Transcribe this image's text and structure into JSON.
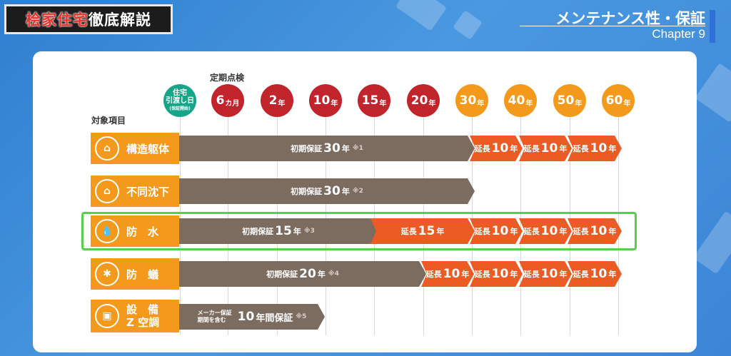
{
  "header": {
    "badge_part1": "桧家住宅",
    "badge_part2": "徹底解説",
    "section_title": "メンテナンス性・保証",
    "chapter": "Chapter 9"
  },
  "chart": {
    "inspection_label": "定期点検",
    "items_label": "対象項目",
    "start": {
      "line1": "住宅",
      "line2": "引渡し日",
      "line3": "(保証開始)"
    },
    "milestones": [
      {
        "num": "6",
        "unit": "カ月"
      },
      {
        "num": "2",
        "unit": "年"
      },
      {
        "num": "10",
        "unit": "年"
      },
      {
        "num": "15",
        "unit": "年"
      },
      {
        "num": "20",
        "unit": "年"
      },
      {
        "num": "30",
        "unit": "年"
      },
      {
        "num": "40",
        "unit": "年"
      },
      {
        "num": "50",
        "unit": "年"
      },
      {
        "num": "60",
        "unit": "年"
      }
    ],
    "rows": [
      {
        "label": "構造躯体",
        "bars": [
          {
            "prefix": "初期保証",
            "num": "30",
            "unit": "年",
            "note": "※1"
          },
          {
            "prefix": "延長",
            "num": "10",
            "unit": "年"
          },
          {
            "prefix": "延長",
            "num": "10",
            "unit": "年"
          },
          {
            "prefix": "延長",
            "num": "10",
            "unit": "年"
          }
        ]
      },
      {
        "label": "不同沈下",
        "bars": [
          {
            "prefix": "初期保証",
            "num": "30",
            "unit": "年",
            "note": "※2"
          }
        ]
      },
      {
        "label": "防　水",
        "bars": [
          {
            "prefix": "初期保証",
            "num": "15",
            "unit": "年",
            "note": "※3"
          },
          {
            "prefix": "延長",
            "num": "15",
            "unit": "年"
          },
          {
            "prefix": "延長",
            "num": "10",
            "unit": "年"
          },
          {
            "prefix": "延長",
            "num": "10",
            "unit": "年"
          },
          {
            "prefix": "延長",
            "num": "10",
            "unit": "年"
          }
        ]
      },
      {
        "label": "防　蟻",
        "bars": [
          {
            "prefix": "初期保証",
            "num": "20",
            "unit": "年",
            "note": "※4"
          },
          {
            "prefix": "延長",
            "num": "10",
            "unit": "年"
          },
          {
            "prefix": "延長",
            "num": "10",
            "unit": "年"
          },
          {
            "prefix": "延長",
            "num": "10",
            "unit": "年"
          },
          {
            "prefix": "延長",
            "num": "10",
            "unit": "年"
          }
        ]
      },
      {
        "label1": "設　備",
        "label2": "Z 空調",
        "bars": [
          {
            "prefix1": "メーカー保証",
            "prefix2": "期間を含む",
            "num": "10",
            "unit": "年間保証",
            "note": "※5"
          }
        ]
      }
    ]
  },
  "colors": {
    "brown": "#7c6c60",
    "orange": "#ec5b24",
    "red": "#c2242b",
    "amber": "#f39a1c",
    "highlight": "#55d04a"
  }
}
